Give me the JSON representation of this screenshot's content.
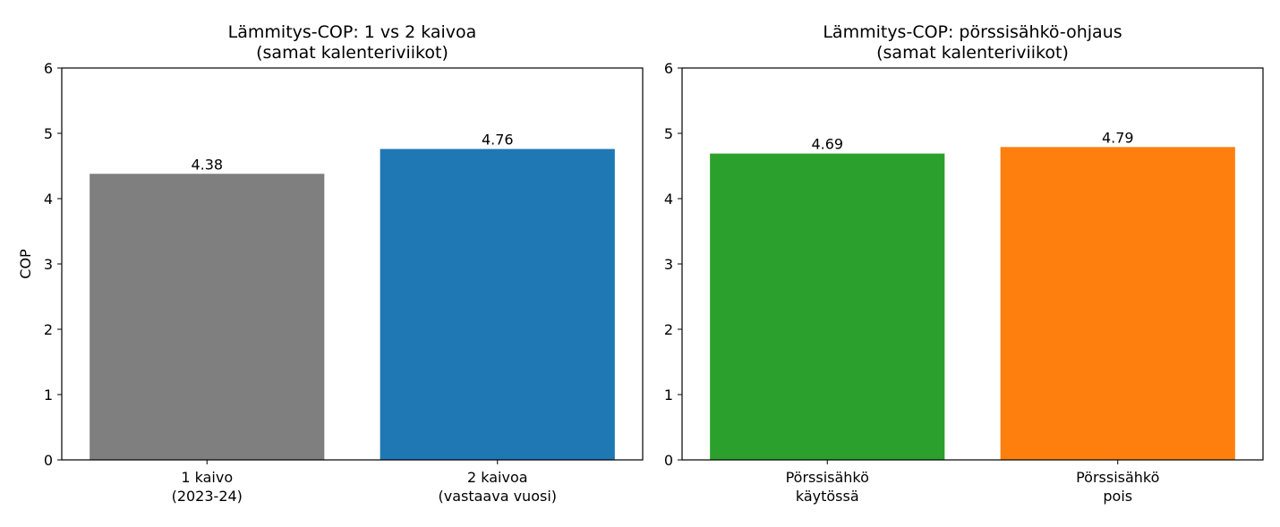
{
  "chart_data": [
    {
      "type": "bar",
      "title": [
        "Lämmitys-COP: 1 vs 2 kaivoa",
        "(samat kalenteriviikot)"
      ],
      "ylabel": "COP",
      "categories": [
        [
          "1 kaivo",
          "(2023-24)"
        ],
        [
          "2 kaivoa",
          "(vastaava vuosi)"
        ]
      ],
      "values": [
        4.38,
        4.76
      ],
      "colors": [
        "#7f7f7f",
        "#1f77b4"
      ],
      "ylim": [
        0,
        6
      ],
      "yticks": [
        0,
        1,
        2,
        3,
        4,
        5,
        6
      ],
      "grid": false
    },
    {
      "type": "bar",
      "title": [
        "Lämmitys-COP: pörssisähkö-ohjaus",
        "(samat kalenteriviikot)"
      ],
      "categories": [
        [
          "Pörssisähkö",
          "käytössä"
        ],
        [
          "Pörssisähkö",
          "pois"
        ]
      ],
      "values": [
        4.69,
        4.79
      ],
      "colors": [
        "#2ca02c",
        "#ff7f0e"
      ],
      "ylim": [
        0,
        6
      ],
      "yticks": [
        0,
        1,
        2,
        3,
        4,
        5,
        6
      ],
      "grid": false
    }
  ]
}
